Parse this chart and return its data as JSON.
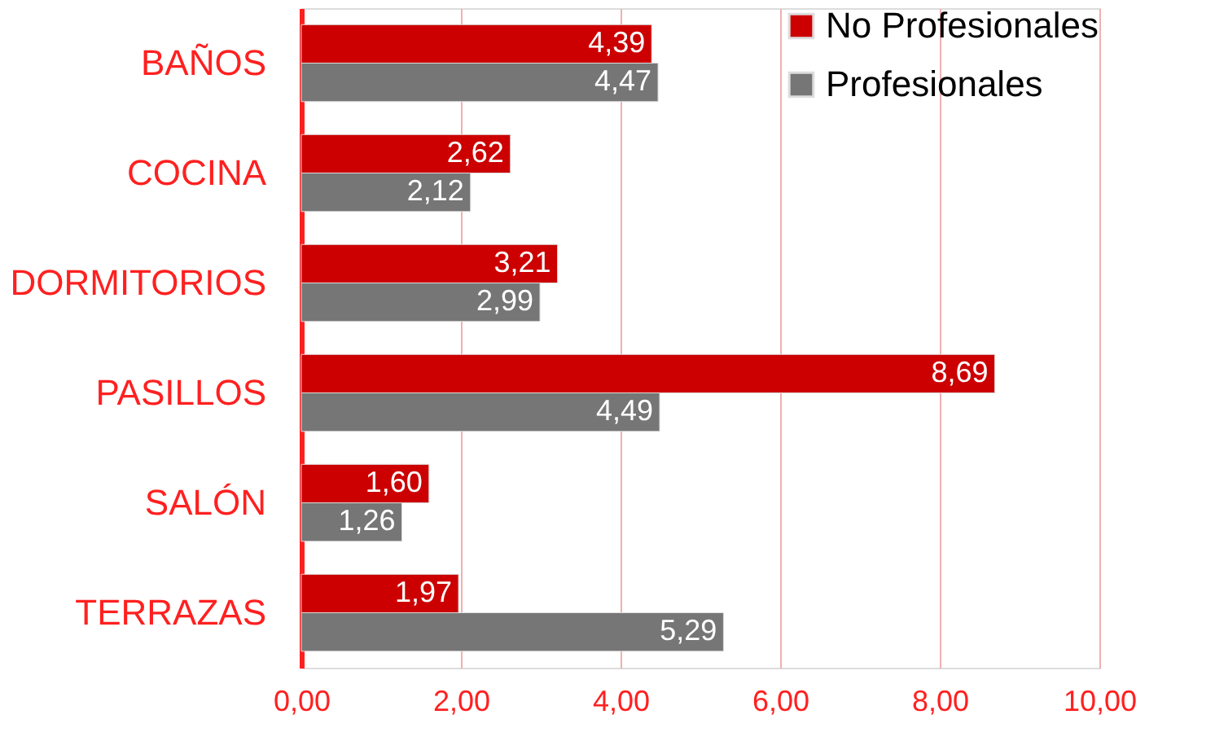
{
  "chart_data": {
    "type": "bar",
    "orientation": "horizontal",
    "categories": [
      "BAÑOS",
      "COCINA",
      "DORMITORIOS",
      "PASILLOS",
      "SALÓN",
      "TERRAZAS"
    ],
    "series": [
      {
        "name": "No Profesionales",
        "color": "#cc0000",
        "values": [
          4.39,
          2.62,
          3.21,
          8.69,
          1.6,
          1.97
        ],
        "value_labels": [
          "4,39",
          "2,62",
          "3,21",
          "8,69",
          "1,60",
          "1,97"
        ]
      },
      {
        "name": "Profesionales",
        "color": "#767676",
        "values": [
          4.47,
          2.12,
          2.99,
          4.49,
          1.26,
          5.29
        ],
        "value_labels": [
          "4,47",
          "2,12",
          "2,99",
          "4,49",
          "1,26",
          "5,29"
        ]
      }
    ],
    "xlim": [
      0,
      10
    ],
    "xticks": [
      {
        "value": 0,
        "label": "0,00"
      },
      {
        "value": 2,
        "label": "2,00"
      },
      {
        "value": 4,
        "label": "4,00"
      },
      {
        "value": 6,
        "label": "6,00"
      },
      {
        "value": 8,
        "label": "8,00"
      },
      {
        "value": 10,
        "label": "10,00"
      }
    ],
    "grid": "x",
    "legend": "top right"
  }
}
